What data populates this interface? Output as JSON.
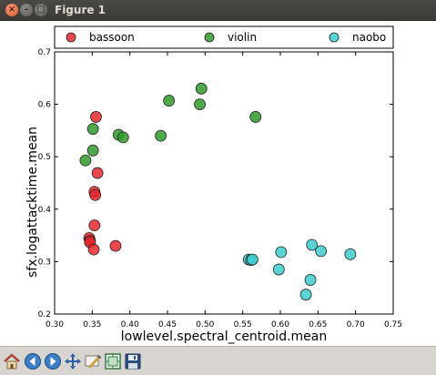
{
  "window": {
    "title": "Figure 1"
  },
  "colors": {
    "bassoon": "#e8262d",
    "violin": "#2e9a2a",
    "naobo": "#3ccdcd"
  },
  "toolbar": {
    "buttons": [
      {
        "name": "home-button",
        "icon": "home-icon"
      },
      {
        "name": "back-button",
        "icon": "arrow-left-icon"
      },
      {
        "name": "forward-button",
        "icon": "arrow-right-icon"
      },
      {
        "name": "pan-button",
        "icon": "move-icon"
      },
      {
        "name": "zoom-button",
        "icon": "zoom-rect-icon"
      },
      {
        "name": "subplots-button",
        "icon": "subplots-icon"
      },
      {
        "name": "save-button",
        "icon": "floppy-icon"
      }
    ]
  },
  "chart_data": {
    "type": "scatter",
    "xlabel": "lowlevel.spectral_centroid.mean",
    "ylabel": "sfx.logattacktime.mean",
    "xlim": [
      0.3,
      0.75
    ],
    "ylim": [
      0.2,
      0.7
    ],
    "xticks": [
      "0.30",
      "0.35",
      "0.40",
      "0.45",
      "0.50",
      "0.55",
      "0.60",
      "0.65",
      "0.70",
      "0.75"
    ],
    "yticks": [
      "0.2",
      "0.3",
      "0.4",
      "0.5",
      "0.6",
      "0.7"
    ],
    "grid": false,
    "legend_position": "top",
    "series": [
      {
        "name": "bassoon",
        "points": [
          [
            0.355,
            0.576
          ],
          [
            0.357,
            0.469
          ],
          [
            0.353,
            0.433
          ],
          [
            0.354,
            0.427
          ],
          [
            0.353,
            0.369
          ],
          [
            0.346,
            0.345
          ],
          [
            0.347,
            0.34
          ],
          [
            0.347,
            0.337
          ],
          [
            0.352,
            0.323
          ],
          [
            0.381,
            0.33
          ]
        ]
      },
      {
        "name": "violin",
        "points": [
          [
            0.351,
            0.553
          ],
          [
            0.351,
            0.512
          ],
          [
            0.341,
            0.493
          ],
          [
            0.385,
            0.542
          ],
          [
            0.391,
            0.537
          ],
          [
            0.441,
            0.54
          ],
          [
            0.452,
            0.607
          ],
          [
            0.495,
            0.63
          ],
          [
            0.493,
            0.6
          ],
          [
            0.567,
            0.576
          ]
        ]
      },
      {
        "name": "naobo",
        "points": [
          [
            0.558,
            0.304
          ],
          [
            0.561,
            0.303
          ],
          [
            0.563,
            0.304
          ],
          [
            0.601,
            0.318
          ],
          [
            0.598,
            0.285
          ],
          [
            0.642,
            0.332
          ],
          [
            0.654,
            0.32
          ],
          [
            0.693,
            0.314
          ],
          [
            0.64,
            0.265
          ],
          [
            0.634,
            0.237
          ]
        ]
      }
    ]
  }
}
